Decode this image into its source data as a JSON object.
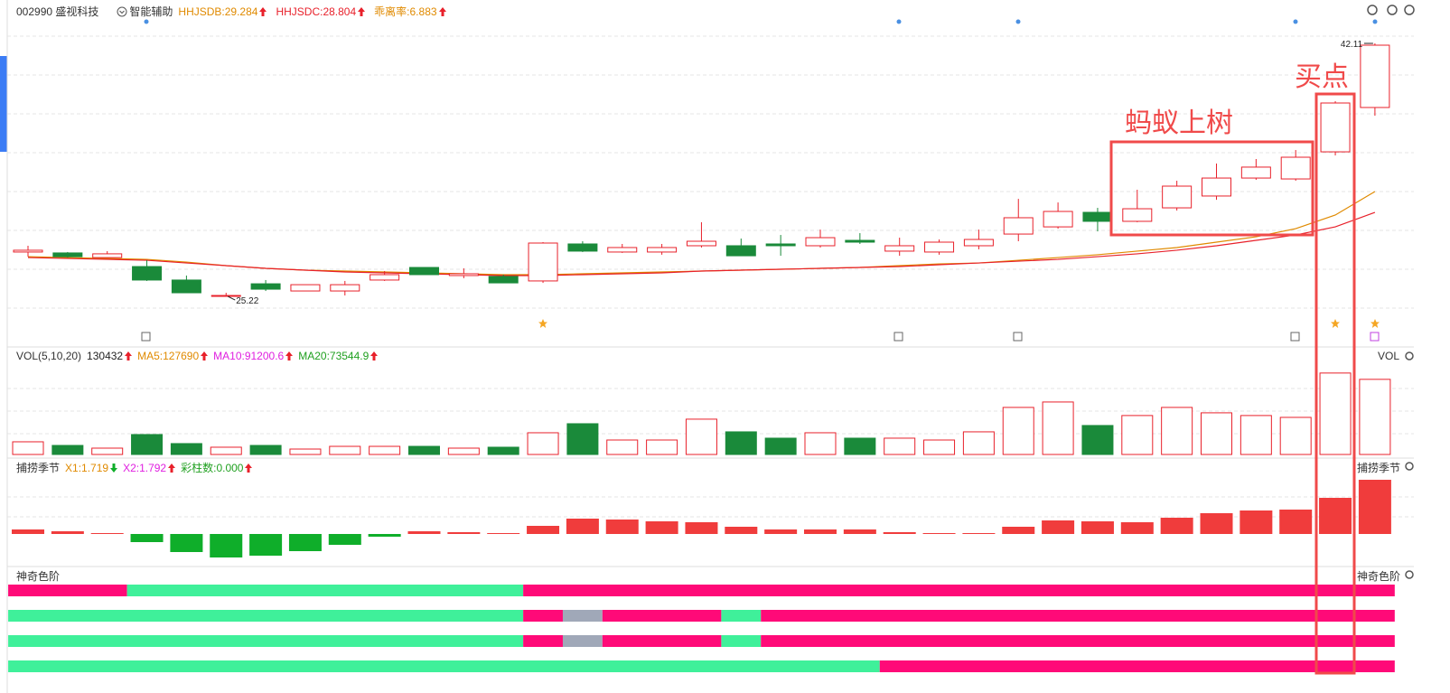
{
  "header": {
    "stock": "002990 盛视科技",
    "assist": "智能辅助",
    "items": [
      {
        "text": "HHJSDB:29.284",
        "color": "#e08a00"
      },
      {
        "text": "HHJSDC:28.804",
        "color": "#e8212b"
      },
      {
        "text": "乖离率:6.883",
        "color": "#e08a00"
      }
    ]
  },
  "annotations": {
    "pattern": "蚂蚁上树",
    "buy": "买点"
  },
  "chart_data": [
    {
      "type": "candlestick",
      "up_color": "#e8212b",
      "down_color": "#1a8a3a",
      "ylim": [
        23.17,
        43.8
      ],
      "open": [
        28.18,
        28.12,
        27.81,
        27.21,
        26.31,
        25.28,
        26.06,
        25.58,
        25.58,
        26.31,
        27.15,
        26.61,
        26.55,
        26.25,
        28.72,
        28.18,
        28.18,
        28.6,
        28.6,
        28.72,
        28.6,
        28.96,
        28.24,
        28.18,
        28.6,
        29.38,
        29.86,
        30.83,
        30.23,
        31.13,
        31.92,
        33.12,
        33.06,
        34.87,
        37.83
      ],
      "high": [
        28.6,
        28.18,
        28.24,
        27.63,
        26.61,
        25.46,
        26.31,
        26.0,
        26.25,
        26.91,
        27.15,
        27.09,
        26.67,
        28.84,
        28.9,
        28.72,
        28.72,
        30.17,
        29.08,
        29.32,
        29.68,
        29.44,
        29.14,
        29.02,
        29.68,
        31.73,
        31.49,
        31.13,
        32.34,
        32.94,
        34.09,
        34.39,
        34.99,
        38.25,
        42.11
      ],
      "low": [
        27.87,
        27.81,
        27.81,
        26.25,
        25.46,
        25.22,
        25.58,
        25.58,
        25.28,
        26.25,
        26.67,
        26.43,
        26.12,
        26.12,
        28.18,
        28.12,
        28.0,
        28.48,
        27.93,
        27.93,
        28.48,
        28.72,
        27.93,
        28.0,
        28.36,
        28.9,
        29.74,
        29.56,
        30.17,
        30.95,
        31.67,
        33.0,
        32.94,
        34.63,
        37.28
      ],
      "close": [
        28.3,
        27.87,
        28.06,
        26.31,
        25.46,
        25.28,
        25.7,
        26.0,
        26.0,
        26.67,
        26.67,
        26.73,
        26.12,
        28.78,
        28.24,
        28.48,
        28.48,
        28.9,
        27.93,
        28.6,
        29.14,
        28.84,
        28.6,
        28.84,
        29.02,
        30.47,
        30.89,
        30.23,
        31.07,
        32.58,
        33.12,
        33.85,
        34.51,
        38.13,
        41.99
      ],
      "lines": [
        {
          "color": "#e08a00",
          "values": [
            27.87,
            27.81,
            27.75,
            27.69,
            27.51,
            27.27,
            27.09,
            26.97,
            26.91,
            26.85,
            26.79,
            26.73,
            26.67,
            26.67,
            26.73,
            26.79,
            26.85,
            26.91,
            26.97,
            27.03,
            27.09,
            27.15,
            27.27,
            27.39,
            27.45,
            27.63,
            27.81,
            28.0,
            28.24,
            28.48,
            28.84,
            29.2,
            29.74,
            30.65,
            32.22
          ]
        },
        {
          "color": "#e8212b",
          "values": [
            27.81,
            27.75,
            27.69,
            27.63,
            27.45,
            27.27,
            27.09,
            26.97,
            26.85,
            26.79,
            26.73,
            26.67,
            26.61,
            26.61,
            26.67,
            26.73,
            26.79,
            26.91,
            26.97,
            27.03,
            27.09,
            27.15,
            27.21,
            27.33,
            27.45,
            27.57,
            27.69,
            27.87,
            28.06,
            28.3,
            28.6,
            28.96,
            29.32,
            29.86,
            30.83
          ]
        }
      ]
    },
    {
      "type": "volume",
      "title": "VOL(5,10,20)",
      "right_title": "VOL",
      "legend": [
        {
          "text": "130432",
          "color": "#222"
        },
        {
          "text": "MA5:127690",
          "color": "#e08a00"
        },
        {
          "text": "MA10:91200.6",
          "color": "#e020e0"
        },
        {
          "text": "MA20:73544.9",
          "color": "#20a020"
        }
      ],
      "ylim": [
        0,
        160000
      ],
      "values": [
        22000,
        15700,
        11000,
        34600,
        18900,
        12600,
        15700,
        9400,
        14100,
        14100,
        14100,
        11000,
        12600,
        37700,
        53400,
        25100,
        25100,
        61300,
        39300,
        28300,
        37700,
        28300,
        28300,
        25100,
        39300,
        81700,
        91100,
        50300,
        67600,
        81700,
        72300,
        67600,
        64400,
        141400,
        130432
      ]
    },
    {
      "type": "oscillator",
      "title": "捕捞季节",
      "right_title": "捕捞季节",
      "legend": [
        {
          "text": "X1:1.719",
          "color": "#e08a00"
        },
        {
          "text": "X2:1.792",
          "color": "#e020e0"
        },
        {
          "text": "彩柱数:0.000",
          "color": "#20a020"
        }
      ],
      "ylim": [
        -2,
        3.5
      ],
      "pos_color": "#f03c3c",
      "neg_color": "#0fae2a",
      "values": [
        0.25,
        0.15,
        0.05,
        -0.45,
        -1.0,
        -1.3,
        -1.2,
        -0.95,
        -0.6,
        -0.15,
        0.15,
        0.1,
        0.05,
        0.45,
        0.85,
        0.8,
        0.7,
        0.65,
        0.4,
        0.25,
        0.25,
        0.25,
        0.1,
        0.05,
        0.05,
        0.4,
        0.75,
        0.7,
        0.65,
        0.9,
        1.15,
        1.3,
        1.35,
        2.0,
        3.0
      ]
    },
    {
      "type": "bands",
      "title": "神奇色阶",
      "right_title": "神奇色阶",
      "rows": [
        [
          {
            "from": 0,
            "to": 3,
            "color": "#ff0a78"
          },
          {
            "from": 3,
            "to": 13,
            "color": "#3ff09a"
          },
          {
            "from": 13,
            "to": 35,
            "color": "#ff0a78"
          }
        ],
        [
          {
            "from": 0,
            "to": 13,
            "color": "#3ff09a"
          },
          {
            "from": 13,
            "to": 14,
            "color": "#ff0a78"
          },
          {
            "from": 14,
            "to": 15,
            "color": "#a0a8b8"
          },
          {
            "from": 15,
            "to": 18,
            "color": "#ff0a78"
          },
          {
            "from": 18,
            "to": 19,
            "color": "#3ff09a"
          },
          {
            "from": 19,
            "to": 35,
            "color": "#ff0a78"
          }
        ],
        [
          {
            "from": 0,
            "to": 13,
            "color": "#3ff09a"
          },
          {
            "from": 13,
            "to": 14,
            "color": "#ff0a78"
          },
          {
            "from": 14,
            "to": 15,
            "color": "#a0a8b8"
          },
          {
            "from": 15,
            "to": 18,
            "color": "#ff0a78"
          },
          {
            "from": 18,
            "to": 19,
            "color": "#3ff09a"
          },
          {
            "from": 19,
            "to": 35,
            "color": "#ff0a78"
          }
        ],
        [
          {
            "from": 0,
            "to": 22,
            "color": "#3ff09a"
          },
          {
            "from": 22,
            "to": 35,
            "color": "#ff0a78"
          }
        ]
      ]
    }
  ]
}
